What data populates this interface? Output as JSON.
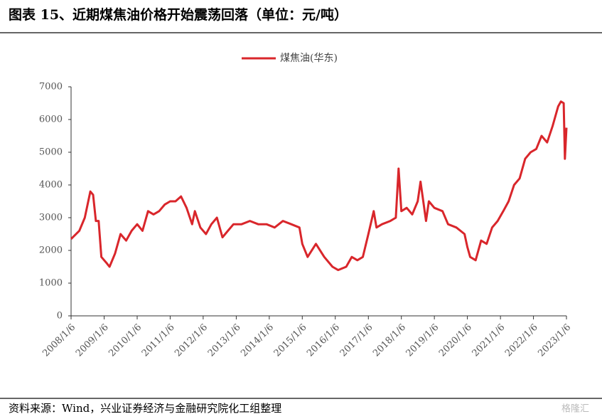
{
  "chart_data": {
    "type": "line",
    "title": "图表 15、近期煤焦油价格开始震荡回落（单位：元/吨）",
    "source": "资料来源：Wind，兴业证券经济与金融研究院化工组整理",
    "watermark": "格隆汇",
    "x": [
      "2008/1/6",
      "2008/4/6",
      "2008/6/6",
      "2008/8/6",
      "2008/9/6",
      "2008/10/6",
      "2008/11/6",
      "2008/12/6",
      "2009/2/6",
      "2009/3/6",
      "2009/5/6",
      "2009/7/6",
      "2009/9/6",
      "2009/11/6",
      "2010/1/6",
      "2010/3/6",
      "2010/5/6",
      "2010/7/6",
      "2010/9/6",
      "2010/11/6",
      "2011/1/6",
      "2011/3/6",
      "2011/5/6",
      "2011/7/6",
      "2011/9/6",
      "2011/10/6",
      "2011/12/6",
      "2012/2/6",
      "2012/4/6",
      "2012/6/6",
      "2012/8/6",
      "2012/10/6",
      "2012/12/6",
      "2013/3/6",
      "2013/6/6",
      "2013/9/6",
      "2013/12/6",
      "2014/3/6",
      "2014/6/6",
      "2014/9/6",
      "2014/12/6",
      "2015/1/6",
      "2015/3/6",
      "2015/6/6",
      "2015/9/6",
      "2015/12/6",
      "2016/2/6",
      "2016/5/6",
      "2016/7/6",
      "2016/9/6",
      "2016/11/6",
      "2017/1/6",
      "2017/3/6",
      "2017/4/6",
      "2017/6/6",
      "2017/9/6",
      "2017/11/6",
      "2017/12/6",
      "2018/1/6",
      "2018/3/6",
      "2018/5/6",
      "2018/7/6",
      "2018/8/6",
      "2018/10/6",
      "2018/11/6",
      "2019/1/6",
      "2019/4/6",
      "2019/6/6",
      "2019/9/6",
      "2019/12/6",
      "2020/1/6",
      "2020/2/6",
      "2020/4/6",
      "2020/6/6",
      "2020/8/6",
      "2020/10/6",
      "2020/12/6",
      "2021/2/6",
      "2021/4/6",
      "2021/6/6",
      "2021/8/6",
      "2021/10/6",
      "2021/12/6",
      "2022/2/6",
      "2022/4/6",
      "2022/6/6",
      "2022/8/6",
      "2022/10/6",
      "2022/11/6",
      "2022/12/6",
      "2022/12/20",
      "2023/1/6"
    ],
    "series": [
      {
        "name": "煤焦油(华东)",
        "color": "#d9262b",
        "values": [
          2350,
          2600,
          3000,
          3800,
          3700,
          2900,
          2900,
          1800,
          1600,
          1500,
          1900,
          2500,
          2300,
          2600,
          2800,
          2600,
          3200,
          3100,
          3200,
          3400,
          3500,
          3500,
          3650,
          3300,
          2800,
          3200,
          2700,
          2500,
          2800,
          3000,
          2400,
          2600,
          2800,
          2800,
          2900,
          2800,
          2800,
          2700,
          2900,
          2800,
          2700,
          2200,
          1800,
          2200,
          1800,
          1500,
          1400,
          1500,
          1800,
          1700,
          1800,
          2500,
          3200,
          2700,
          2800,
          2900,
          3000,
          4500,
          3200,
          3300,
          3100,
          3500,
          4100,
          2900,
          3500,
          3300,
          3200,
          2800,
          2700,
          2500,
          2100,
          1800,
          1700,
          2300,
          2200,
          2700,
          2900,
          3200,
          3500,
          4000,
          4200,
          4800,
          5000,
          5100,
          5500,
          5300,
          5800,
          6400,
          6550,
          6500,
          4800,
          5750
        ]
      }
    ],
    "xlim": [
      "2008/1/6",
      "2023/1/6"
    ],
    "xticks": [
      "2008/1/6",
      "2009/1/6",
      "2010/1/6",
      "2011/1/6",
      "2012/1/6",
      "2013/1/6",
      "2014/1/6",
      "2015/1/6",
      "2016/1/6",
      "2017/1/6",
      "2018/1/6",
      "2019/1/6",
      "2020/1/6",
      "2021/1/6",
      "2022/1/6",
      "2023/1/6"
    ],
    "ylim": [
      0,
      7000
    ],
    "yticks": [
      0,
      1000,
      2000,
      3000,
      4000,
      5000,
      6000,
      7000
    ],
    "legend": "top"
  }
}
